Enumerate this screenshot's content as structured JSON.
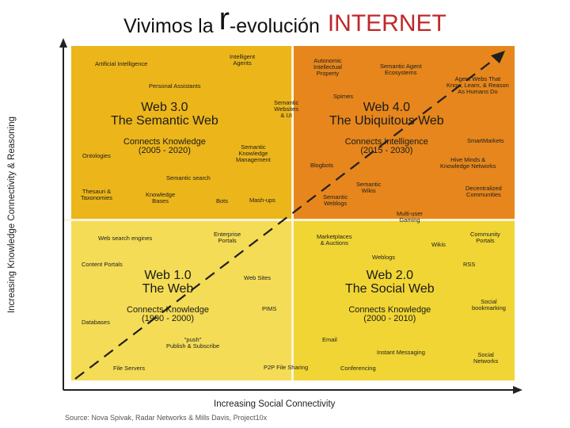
{
  "title": {
    "part1": "Vivimos la ",
    "part2": "r",
    "part3": "-evolución",
    "part4": "INTERNET"
  },
  "axes": {
    "y_label": "Increasing Knowledge Connectivity & Reasoning",
    "x_label": "Increasing Social Connectivity"
  },
  "quadrants": {
    "web3": {
      "line1": "Web 3.0",
      "line2": "The Semantic Web",
      "line3": "Connects Knowledge",
      "line4": "(2005 - 2020)"
    },
    "web4": {
      "line1": "Web 4.0",
      "line2": "The Ubiquitous Web",
      "line3": "Connects Intelligence",
      "line4": "(2015 - 2030)"
    },
    "web1": {
      "line1": "Web 1.0",
      "line2": "The Web",
      "line3": "Connects Knowledge",
      "line4": "(1990 - 2000)"
    },
    "web2": {
      "line1": "Web 2.0",
      "line2": "The Social Web",
      "line3": "Connects Knowledge",
      "line4": "(2000 - 2010)"
    }
  },
  "tags": {
    "artificial_intelligence": "Artificial Intelligence",
    "intelligent_agents": "Intelligent\nAgents",
    "personal_assistants": "Personal Assistants",
    "semantic_websites": "Semantic\nWebsites\n& UI",
    "ontologies": "Ontologies",
    "semantic_km": "Semantic\nKnowledge\nManagement",
    "semantic_search": "Semantic search",
    "thesauri": "Thesauri &\nTaxonomies",
    "knowledge_bases": "Knowledge\nBases",
    "bots": "Bots",
    "mashups": "Mash-ups",
    "autonomic": "Autonomic\nIntellectual\nProperty",
    "semantic_agent_eco": "Semantic Agent\nEcosystems",
    "agent_webs": "Agent Webs That\nKnow, Learn, & Reason\nAs Humans Do",
    "spimes": "Spimes",
    "smartmarkets": "SmartMarkets",
    "blogbots": "Blogbots",
    "hive_minds": "Hive Minds &\nKnowledge Networks",
    "semantic_wikis": "Semantic\nWikis",
    "semantic_weblogs": "Semantic\nWeblogs",
    "decentralized": "Decentralized\nCommunities",
    "multiuser_gaming": "Multi-user\nGaming",
    "web_search": "Web search engines",
    "enterprise_portals": "Enterprise\nPortals",
    "content_portals": "Content Portals",
    "web_sites": "Web Sites",
    "pims": "PIMS",
    "databases": "Databases",
    "push": "\"push\"\nPublish & Subscribe",
    "file_servers": "File Servers",
    "p2p": "P2P File Sharing",
    "marketplaces": "Marketplaces\n& Auctions",
    "wikis": "Wikis",
    "community_portals": "Community\nPortals",
    "weblogs": "Weblogs",
    "rss": "RSS",
    "social_bookmarking": "Social\nbookmarking",
    "email": "Email",
    "instant_messaging": "Instant Messaging",
    "conferencing": "Conferencing",
    "social_networks": "Social\nNetworks"
  },
  "source": "Source: Nova Spivak, Radar Networks & Mills Davis, Project10x",
  "colors": {
    "web3": "#ecb51a",
    "web4": "#e6861c",
    "web1": "#f4dc56",
    "web2": "#f0d534",
    "divider": "#fbf4d8",
    "axis": "#222222"
  }
}
